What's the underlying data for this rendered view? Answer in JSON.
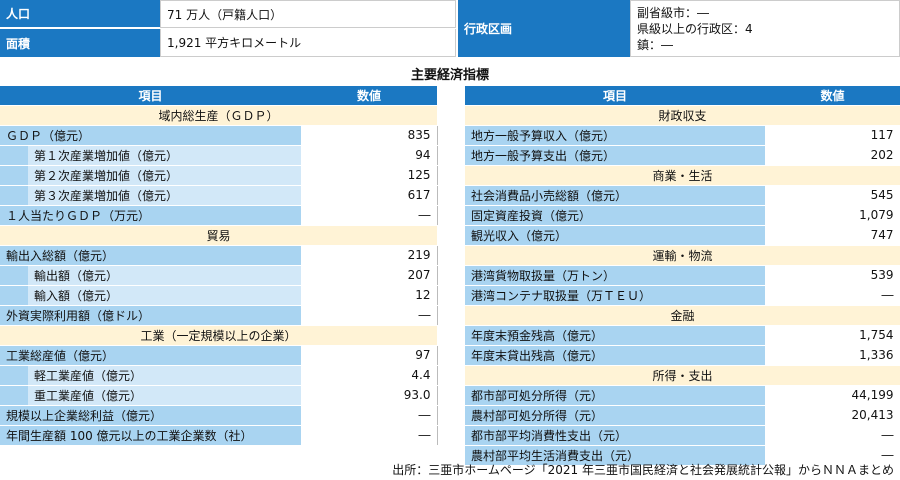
{
  "info": {
    "population_label": "人口",
    "population_value": "71 万人（戸籍人口）",
    "area_label": "面積",
    "area_value": "1,921 平方キロメートル",
    "admin_label": "行政区画",
    "admin_lines": [
      "副省級市：―",
      "県級以上の行政区：4",
      "鎮：―"
    ]
  },
  "title": "主要経済指標",
  "left": {
    "header": [
      "項目",
      "数値"
    ],
    "rows": [
      {
        "type": "section",
        "label": "域内総生産（ＧＤＰ）"
      },
      {
        "type": "row",
        "label": "ＧＤＰ（億元）",
        "value": "835",
        "level": 0
      },
      {
        "type": "row",
        "label": "第１次産業増加値（億元）",
        "value": "94",
        "level": 1
      },
      {
        "type": "row",
        "label": "第２次産業増加値（億元）",
        "value": "125",
        "level": 1
      },
      {
        "type": "row",
        "label": "第３次産業増加値（億元）",
        "value": "617",
        "level": 1
      },
      {
        "type": "row",
        "label": "１人当たりＧＤＰ（万元）",
        "value": "―",
        "level": 0
      },
      {
        "type": "section",
        "label": "貿易"
      },
      {
        "type": "row",
        "label": "輸出入総額（億元）",
        "value": "219",
        "level": 0
      },
      {
        "type": "row",
        "label": "輸出額（億元）",
        "value": "207",
        "level": 1
      },
      {
        "type": "row",
        "label": "輸入額（億元）",
        "value": "12",
        "level": 1
      },
      {
        "type": "row",
        "label": "外資実際利用額（億ドル）",
        "value": "―",
        "level": 0
      },
      {
        "type": "section",
        "label": "工業（一定規模以上の企業）"
      },
      {
        "type": "row",
        "label": "工業総産値（億元）",
        "value": "97",
        "level": 0
      },
      {
        "type": "row",
        "label": "軽工業産値（億元）",
        "value": "4.4",
        "level": 1
      },
      {
        "type": "row",
        "label": "重工業産値（億元）",
        "value": "93.0",
        "level": 1
      },
      {
        "type": "row",
        "label": "規模以上企業総利益（億元）",
        "value": "―",
        "level": 0
      },
      {
        "type": "row",
        "label": "年間生産額 100 億元以上の工業企業数（社）",
        "value": "―",
        "level": 0
      }
    ]
  },
  "right": {
    "header": [
      "項目",
      "数値"
    ],
    "rows": [
      {
        "type": "section",
        "label": "財政収支"
      },
      {
        "type": "row",
        "label": "地方一般予算収入（億元）",
        "value": "117",
        "level": 0
      },
      {
        "type": "row",
        "label": "地方一般予算支出（億元）",
        "value": "202",
        "level": 0
      },
      {
        "type": "section",
        "label": "商業・生活"
      },
      {
        "type": "row",
        "label": "社会消費品小売総額（億元）",
        "value": "545",
        "level": 0
      },
      {
        "type": "row",
        "label": "固定資産投資（億元）",
        "value": "1,079",
        "level": 0
      },
      {
        "type": "row",
        "label": "観光収入（億元）",
        "value": "747",
        "level": 0
      },
      {
        "type": "section",
        "label": "運輸・物流"
      },
      {
        "type": "row",
        "label": "港湾貨物取扱量（万トン）",
        "value": "539",
        "level": 0
      },
      {
        "type": "row",
        "label": "港湾コンテナ取扱量（万ＴＥＵ）",
        "value": "―",
        "level": 0
      },
      {
        "type": "section",
        "label": "金融"
      },
      {
        "type": "row",
        "label": "年度末預金残高（億元）",
        "value": "1,754",
        "level": 0
      },
      {
        "type": "row",
        "label": "年度末貸出残高（億元）",
        "value": "1,336",
        "level": 0
      },
      {
        "type": "section",
        "label": "所得・支出"
      },
      {
        "type": "row",
        "label": "都市部可処分所得（元）",
        "value": "44,199",
        "level": 0
      },
      {
        "type": "row",
        "label": "農村部可処分所得（元）",
        "value": "20,413",
        "level": 0
      },
      {
        "type": "row",
        "label": "都市部平均消費性支出（元）",
        "value": "―",
        "level": 0
      },
      {
        "type": "row",
        "label": "農村部平均生活消費支出（元）",
        "value": "―",
        "level": 0
      }
    ]
  },
  "source": "出所：三亜市ホームページ「2021 年三亜市国民経済と社会発展統計公報」からＮＮＡまとめ"
}
